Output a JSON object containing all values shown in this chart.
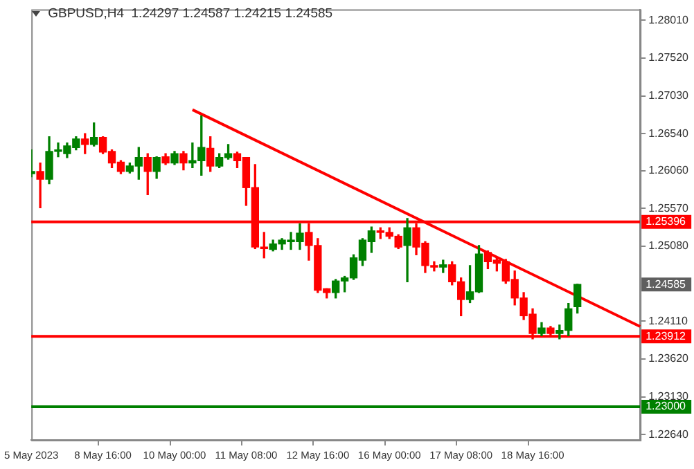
{
  "chart_data": {
    "type": "candlestick",
    "title": "GBPUSD,H4  1.24297 1.24587 1.24215 1.24585",
    "categories": [
      "5 May 2023",
      null,
      null,
      null,
      null,
      null,
      null,
      null,
      "8 May 16:00",
      null,
      null,
      null,
      null,
      null,
      null,
      null,
      "10 May 00:00",
      null,
      null,
      null,
      null,
      null,
      null,
      null,
      "11 May 08:00",
      null,
      null,
      null,
      null,
      null,
      null,
      null,
      "12 May 16:00",
      null,
      null,
      null,
      null,
      null,
      null,
      null,
      "16 May 00:00",
      null,
      null,
      null,
      null,
      null,
      null,
      null,
      "17 May 08:00",
      null,
      null,
      null,
      null,
      null,
      null,
      null,
      "18 May 16:00",
      null,
      null,
      null,
      null,
      null,
      null,
      null,
      null,
      null,
      null,
      null,
      null
    ],
    "ohlc": [
      [
        1.2602,
        1.2633,
        1.2598,
        1.2605
      ],
      [
        1.2605,
        1.2616,
        1.2558,
        1.2595
      ],
      [
        1.2595,
        1.265,
        1.2589,
        1.2631
      ],
      [
        1.2631,
        1.2642,
        1.2624,
        1.2633
      ],
      [
        1.2628,
        1.2642,
        1.2623,
        1.2638
      ],
      [
        1.2636,
        1.265,
        1.2633,
        1.2647
      ],
      [
        1.2647,
        1.2654,
        1.2628,
        1.264
      ],
      [
        1.264,
        1.2668,
        1.2638,
        1.2649
      ],
      [
        1.2649,
        1.265,
        1.2628,
        1.263
      ],
      [
        1.2631,
        1.2633,
        1.261,
        1.2616
      ],
      [
        1.2617,
        1.2619,
        1.2602,
        1.2605
      ],
      [
        1.2605,
        1.2616,
        1.2603,
        1.2612
      ],
      [
        1.2612,
        1.2636,
        1.2595,
        1.2623
      ],
      [
        1.2623,
        1.2628,
        1.2575,
        1.2605
      ],
      [
        1.2605,
        1.2624,
        1.2596,
        1.2623
      ],
      [
        1.2624,
        1.2628,
        1.2614,
        1.2616
      ],
      [
        1.2616,
        1.2631,
        1.2614,
        1.2628
      ],
      [
        1.2628,
        1.2631,
        1.2607,
        1.2616
      ],
      [
        1.2616,
        1.2642,
        1.261,
        1.2619
      ],
      [
        1.2619,
        1.2677,
        1.26,
        1.2636
      ],
      [
        1.2635,
        1.265,
        1.2605,
        1.2612
      ],
      [
        1.2612,
        1.2628,
        1.261,
        1.2623
      ],
      [
        1.2623,
        1.264,
        1.2621,
        1.2628
      ],
      [
        1.2628,
        1.263,
        1.261,
        1.2619
      ],
      [
        1.2623,
        1.2623,
        1.2561,
        1.2584
      ],
      [
        1.2584,
        1.2614,
        1.2505,
        1.2507
      ],
      [
        1.2507,
        1.2526,
        1.2493,
        1.2505
      ],
      [
        1.2504,
        1.2516,
        1.2502,
        1.2511
      ],
      [
        1.2511,
        1.2518,
        1.2504,
        1.2516
      ],
      [
        1.2514,
        1.2526,
        1.2504,
        1.2516
      ],
      [
        1.2514,
        1.2537,
        1.2504,
        1.2525
      ],
      [
        1.2526,
        1.2537,
        1.249,
        1.2509
      ],
      [
        1.2509,
        1.2518,
        1.2448,
        1.2451
      ],
      [
        1.2453,
        1.2453,
        1.2441,
        1.2448
      ],
      [
        1.2448,
        1.2465,
        1.2441,
        1.2463
      ],
      [
        1.2463,
        1.2469,
        1.2449,
        1.2467
      ],
      [
        1.2467,
        1.2497,
        1.2465,
        1.2493
      ],
      [
        1.249,
        1.2518,
        1.2483,
        1.2516
      ],
      [
        1.2514,
        1.2533,
        1.25,
        1.2528
      ],
      [
        1.2528,
        1.2532,
        1.2518,
        1.2526
      ],
      [
        1.2526,
        1.2532,
        1.2518,
        1.2521
      ],
      [
        1.2521,
        1.2523,
        1.2505,
        1.2507
      ],
      [
        1.2509,
        1.2544,
        1.2462,
        1.2532
      ],
      [
        1.2532,
        1.2537,
        1.2497,
        1.2507
      ],
      [
        1.2512,
        1.2514,
        1.2474,
        1.2483
      ],
      [
        1.2483,
        1.2488,
        1.2476,
        1.2481
      ],
      [
        1.2481,
        1.249,
        1.2474,
        1.2484
      ],
      [
        1.2484,
        1.2488,
        1.2458,
        1.2462
      ],
      [
        1.2462,
        1.2467,
        1.2418,
        1.2439
      ],
      [
        1.2439,
        1.2483,
        1.2435,
        1.2449
      ],
      [
        1.2449,
        1.2509,
        1.2448,
        1.2498
      ],
      [
        1.25,
        1.2502,
        1.2479,
        1.2488
      ],
      [
        1.249,
        1.2493,
        1.2476,
        1.2486
      ],
      [
        1.2488,
        1.2491,
        1.246,
        1.2463
      ],
      [
        1.2465,
        1.2476,
        1.2432,
        1.2441
      ],
      [
        1.2441,
        1.2448,
        1.2413,
        1.2418
      ],
      [
        1.242,
        1.2427,
        1.2388,
        1.2395
      ],
      [
        1.2395,
        1.2409,
        1.2392,
        1.2402
      ],
      [
        1.2402,
        1.2404,
        1.2392,
        1.2395
      ],
      [
        1.2395,
        1.2406,
        1.2388,
        1.2399
      ],
      [
        1.2399,
        1.2434,
        1.2392,
        1.2427
      ],
      [
        1.24297,
        1.24587,
        1.24215,
        1.24585
      ],
      null,
      null,
      null,
      null,
      null,
      null,
      null
    ],
    "colors": [
      "#008000",
      "#ff0000",
      "#008000",
      "#008000",
      "#008000",
      "#008000",
      "#ff0000",
      "#008000",
      "#ff0000",
      "#ff0000",
      "#ff0000",
      "#008000",
      "#008000",
      "#ff0000",
      "#008000",
      "#ff0000",
      "#008000",
      "#ff0000",
      "#008000",
      "#008000",
      "#ff0000",
      "#008000",
      "#008000",
      "#ff0000",
      "#ff0000",
      "#ff0000",
      "#ff0000",
      "#008000",
      "#008000",
      "#008000",
      "#008000",
      "#ff0000",
      "#ff0000",
      "#ff0000",
      "#008000",
      "#008000",
      "#008000",
      "#008000",
      "#008000",
      "#ff0000",
      "#ff0000",
      "#ff0000",
      "#008000",
      "#ff0000",
      "#ff0000",
      "#ff0000",
      "#008000",
      "#ff0000",
      "#ff0000",
      "#008000",
      "#008000",
      "#ff0000",
      "#ff0000",
      "#ff0000",
      "#ff0000",
      "#ff0000",
      "#ff0000",
      "#008000",
      "#ff0000",
      "#008000",
      "#008000",
      "#008000",
      null,
      null,
      null,
      null,
      null,
      null,
      null
    ],
    "series": [
      {
        "type": "line",
        "color": "#ff0000",
        "values": [
          null,
          null,
          null,
          null,
          null,
          null,
          null,
          null,
          null,
          null,
          null,
          null,
          null,
          null,
          null,
          null,
          null,
          null,
          1.2685,
          null,
          null,
          null,
          null,
          null,
          null,
          null,
          null,
          null,
          null,
          null,
          null,
          null,
          null,
          null,
          null,
          null,
          null,
          null,
          null,
          null,
          null,
          null,
          null,
          null,
          null,
          null,
          null,
          null,
          null,
          null,
          null,
          null,
          null,
          null,
          null,
          null,
          null,
          null,
          null,
          null,
          null,
          null,
          null,
          null,
          null,
          null,
          null,
          null,
          1.2404
        ]
      }
    ],
    "ylim": [
      1.2257,
      1.2815
    ],
    "yticks": [
      {
        "value": 1.2801,
        "label": "1.28010"
      },
      {
        "value": 1.2752,
        "label": "1.27520"
      },
      {
        "value": 1.2703,
        "label": "1.27030"
      },
      {
        "value": 1.2654,
        "label": "1.26540"
      },
      {
        "value": 1.2606,
        "label": "1.26060"
      },
      {
        "value": 1.2557,
        "label": "1.25570"
      },
      {
        "value": 1.2508,
        "label": "1.25080"
      },
      {
        "value": 1.2411,
        "label": "1.24110"
      },
      {
        "value": 1.2362,
        "label": "1.23620"
      },
      {
        "value": 1.2313,
        "label": "1.23130"
      },
      {
        "value": 1.2264,
        "label": "1.22640"
      }
    ],
    "ref_lines": [
      {
        "axis": "y",
        "value": 1.25396,
        "label": "1.25396",
        "color": "#ff0000"
      },
      {
        "axis": "y",
        "value": 1.23912,
        "label": "1.23912",
        "color": "#ff0000"
      },
      {
        "axis": "y",
        "value": 1.23,
        "label": "1.23000",
        "color": "#008000"
      }
    ],
    "annotations": [
      "1.24585"
    ],
    "grid": false,
    "legend": false
  }
}
